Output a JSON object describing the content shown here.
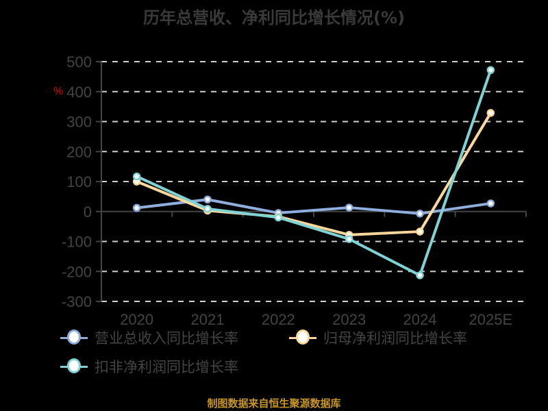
{
  "title": "历年总营收、净利同比增长情况(%)",
  "source": "制图数据来自恒生聚源数据库",
  "chart_data": {
    "type": "line",
    "title": "历年总营收、净利同比增长情况(%)",
    "xlabel": "",
    "ylabel": "%",
    "categories": [
      "2020",
      "2021",
      "2022",
      "2023",
      "2024",
      "2025E"
    ],
    "ylim": [
      -300,
      500
    ],
    "yticks": [
      500,
      400,
      300,
      200,
      100,
      0,
      -100,
      -200,
      -300
    ],
    "grid": true,
    "legend_position": "bottom",
    "series": [
      {
        "name": "营业总收入同比增长率",
        "color": "#8eaede",
        "values": [
          12,
          40,
          -5,
          13,
          -7,
          27
        ]
      },
      {
        "name": "归母净利润同比增长率",
        "color": "#fdd89a",
        "values": [
          100,
          3,
          -17,
          -78,
          -67,
          329
        ]
      },
      {
        "name": "扣非净利润同比增长率",
        "color": "#7dd3d5",
        "values": [
          117,
          9,
          -20,
          -92,
          -213,
          472
        ]
      }
    ]
  },
  "legend": [
    {
      "label": "营业总收入同比增长率",
      "color": "#8eaede"
    },
    {
      "label": "归母净利润同比增长率",
      "color": "#fdd89a"
    },
    {
      "label": "扣非净利润同比增长率",
      "color": "#7dd3d5"
    }
  ]
}
